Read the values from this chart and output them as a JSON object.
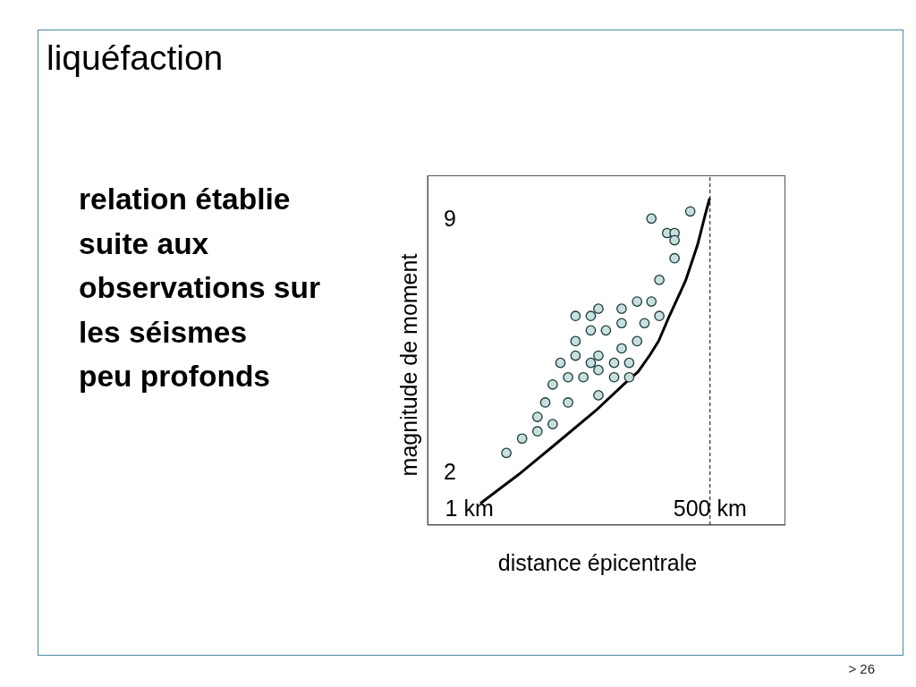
{
  "chart_data": {
    "type": "scatter",
    "title": "liquéfaction",
    "xlabel": "distance épicentrale",
    "ylabel": "magnitude de moment",
    "annotations": [
      "relation établie\nsuite aux\nobservations sur\nles séismes\npeu profonds",
      "> 26"
    ],
    "log": "x",
    "xlim": [
      0.34,
      3500
    ],
    "ylim": [
      0.5,
      10.2
    ],
    "xticks": [
      {
        "value": 1,
        "label": "1 km"
      },
      {
        "value": 500,
        "label": "500 km"
      }
    ],
    "yticks": [
      2,
      9
    ],
    "marker": "circle",
    "series": [
      {
        "color": "#c5e0de",
        "x": [
          300,
          110,
          165,
          200,
          200,
          200,
          135,
          76,
          110,
          28,
          51,
          15.5,
          23,
          135,
          51,
          92,
          23,
          34,
          15.5,
          76,
          51,
          15.5,
          28,
          10.5,
          23,
          42,
          62,
          28,
          12.8,
          19,
          42,
          62,
          8.6,
          28,
          7.1,
          12.8,
          5.8,
          8.6,
          5.8,
          3.9,
          2.6
        ],
        "values": [
          9.2,
          9.0,
          8.6,
          8.6,
          8.4,
          7.9,
          7.3,
          6.7,
          6.7,
          6.5,
          6.5,
          6.3,
          6.3,
          6.3,
          6.1,
          6.1,
          5.9,
          5.9,
          5.6,
          5.6,
          5.4,
          5.2,
          5.2,
          5.0,
          5.0,
          5.0,
          5.0,
          4.8,
          4.6,
          4.6,
          4.6,
          4.6,
          4.4,
          4.1,
          3.9,
          3.9,
          3.5,
          3.3,
          3.1,
          2.9,
          2.5
        ]
      },
      {
        "type": "line",
        "color": "#000000",
        "marker": "none",
        "x": [
          1.36,
          3.56,
          9.0,
          26,
          57,
          78,
          106,
          133,
          168,
          266,
          362,
          440,
          492
        ],
        "values": [
          1.12,
          1.9,
          2.72,
          3.67,
          4.46,
          4.75,
          5.22,
          5.61,
          6.2,
          7.28,
          8.27,
          9.09,
          9.54
        ]
      }
    ],
    "ref_lines": [
      {
        "axis": "x",
        "value": 500,
        "color": "#000000",
        "line_style": "dashed"
      }
    ]
  }
}
